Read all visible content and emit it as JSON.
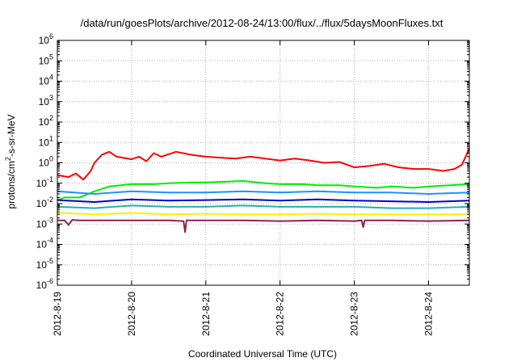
{
  "chart_data": {
    "type": "line",
    "title": "/data/run/goesPlots/archive/2012-08-24/13:00/flux/../flux/5daysMoonFluxes.txt",
    "xlabel": "Coordinated Universal Time (UTC)",
    "ylabel": {
      "main": "protons/cm",
      "sup": "2",
      "rest": "-s-sr-MeV"
    },
    "x_ticks": [
      "2012-8-19",
      "2012-8-20",
      "2012-8-21",
      "2012-8-22",
      "2012-8-23",
      "2012-8-24"
    ],
    "x_range_days": [
      0,
      5.55
    ],
    "y_scale": "log",
    "y_ticks": [
      {
        "base": "10",
        "exp": "-6",
        "v": -6
      },
      {
        "base": "10",
        "exp": "-5",
        "v": -5
      },
      {
        "base": "10",
        "exp": "-4",
        "v": -4
      },
      {
        "base": "10",
        "exp": "-3",
        "v": -3
      },
      {
        "base": "10",
        "exp": "-2",
        "v": -2
      },
      {
        "base": "10",
        "exp": "-1",
        "v": -1
      },
      {
        "base": "10",
        "exp": "0",
        "v": 0
      },
      {
        "base": "10",
        "exp": "1",
        "v": 1
      },
      {
        "base": "10",
        "exp": "2",
        "v": 2
      },
      {
        "base": "10",
        "exp": "3",
        "v": 3
      },
      {
        "base": "10",
        "exp": "4",
        "v": 4
      },
      {
        "base": "10",
        "exp": "5",
        "v": 5
      },
      {
        "base": "10",
        "exp": "6",
        "v": 6
      }
    ],
    "ylim": [
      1e-06,
      1000000.0
    ],
    "grid": true,
    "series": [
      {
        "color": "#ff0000",
        "width": 2,
        "days": [
          0,
          0.15,
          0.25,
          0.35,
          0.45,
          0.5,
          0.6,
          0.7,
          0.8,
          1.0,
          1.1,
          1.2,
          1.3,
          1.4,
          1.6,
          1.8,
          2.0,
          2.2,
          2.4,
          2.6,
          2.8,
          3.0,
          3.2,
          3.4,
          3.6,
          3.8,
          4.0,
          4.2,
          4.4,
          4.6,
          4.8,
          5.0,
          5.2,
          5.35,
          5.45,
          5.5,
          5.55
        ],
        "values": [
          0.25,
          0.2,
          0.3,
          0.15,
          0.4,
          1.0,
          2.5,
          3.5,
          2.0,
          1.5,
          2.0,
          1.2,
          3.0,
          2.0,
          3.5,
          2.5,
          2.0,
          1.8,
          1.6,
          2.0,
          1.6,
          1.3,
          1.6,
          1.3,
          1.0,
          1.1,
          0.6,
          0.7,
          0.9,
          0.6,
          0.5,
          0.5,
          0.4,
          0.5,
          0.8,
          2.0,
          5.0
        ]
      },
      {
        "color": "#00ee00",
        "width": 2,
        "days": [
          0,
          0.1,
          0.3,
          0.5,
          0.7,
          1.0,
          1.3,
          1.5,
          1.8,
          2.0,
          2.3,
          2.5,
          2.8,
          3.0,
          3.3,
          3.5,
          3.8,
          4.0,
          4.3,
          4.5,
          4.8,
          5.0,
          5.3,
          5.55
        ],
        "values": [
          0.015,
          0.02,
          0.02,
          0.04,
          0.07,
          0.09,
          0.09,
          0.1,
          0.11,
          0.11,
          0.12,
          0.13,
          0.1,
          0.09,
          0.09,
          0.08,
          0.08,
          0.07,
          0.06,
          0.07,
          0.06,
          0.07,
          0.08,
          0.09
        ]
      },
      {
        "color": "#1e90ff",
        "width": 2,
        "days": [
          0,
          0.5,
          1.0,
          1.5,
          2.0,
          2.5,
          3.0,
          3.5,
          4.0,
          4.5,
          5.0,
          5.55
        ],
        "values": [
          0.04,
          0.03,
          0.04,
          0.035,
          0.035,
          0.04,
          0.035,
          0.04,
          0.035,
          0.035,
          0.03,
          0.035
        ]
      },
      {
        "color": "#0000cd",
        "width": 2,
        "days": [
          0,
          0.5,
          1.0,
          1.5,
          2.0,
          2.5,
          3.0,
          3.5,
          4.0,
          4.5,
          5.0,
          5.55
        ],
        "values": [
          0.015,
          0.012,
          0.016,
          0.014,
          0.015,
          0.016,
          0.014,
          0.016,
          0.014,
          0.013,
          0.012,
          0.014
        ]
      },
      {
        "color": "#20b2aa",
        "width": 2,
        "days": [
          0,
          0.5,
          1.0,
          1.5,
          2.0,
          2.5,
          3.0,
          3.5,
          4.0,
          4.5,
          5.0,
          5.55
        ],
        "values": [
          0.007,
          0.006,
          0.008,
          0.007,
          0.007,
          0.008,
          0.007,
          0.007,
          0.007,
          0.006,
          0.006,
          0.007
        ]
      },
      {
        "color": "#ffee00",
        "width": 2,
        "days": [
          0,
          0.5,
          1.0,
          1.5,
          2.0,
          2.5,
          3.0,
          3.5,
          4.0,
          4.5,
          5.0,
          5.55
        ],
        "values": [
          0.0035,
          0.003,
          0.0035,
          0.003,
          0.0032,
          0.003,
          0.003,
          0.0032,
          0.003,
          0.003,
          0.003,
          0.003
        ]
      },
      {
        "color": "#8b2252",
        "width": 2,
        "days": [
          0,
          0.1,
          0.15,
          0.2,
          0.3,
          0.5,
          1.0,
          1.5,
          1.7,
          1.72,
          1.74,
          2.0,
          2.5,
          3.0,
          3.5,
          4.0,
          4.1,
          4.12,
          4.14,
          4.5,
          5.0,
          5.55
        ],
        "values": [
          0.0015,
          0.0015,
          0.0009,
          0.0016,
          0.0015,
          0.0015,
          0.0015,
          0.0015,
          0.0014,
          0.0004,
          0.0015,
          0.0015,
          0.0015,
          0.0014,
          0.0015,
          0.0014,
          0.0015,
          0.0007,
          0.0015,
          0.0015,
          0.0014,
          0.0015
        ]
      }
    ]
  }
}
